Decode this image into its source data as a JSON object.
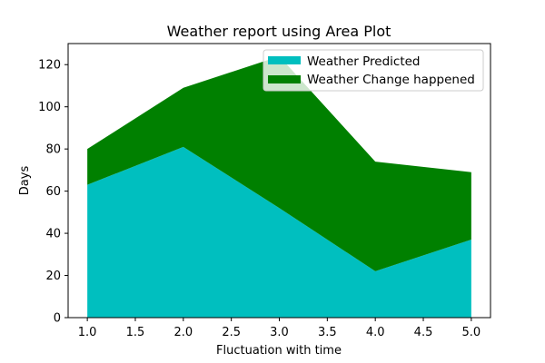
{
  "chart_data": {
    "type": "area",
    "stacked": true,
    "title": "Weather report using Area Plot",
    "xlabel": "Fluctuation with time",
    "ylabel": "Days",
    "x": [
      1,
      2,
      3,
      4,
      5
    ],
    "xlim": [
      0.8,
      5.2
    ],
    "ylim": [
      0,
      130
    ],
    "xticks": [
      1.0,
      1.5,
      2.0,
      2.5,
      3.0,
      3.5,
      4.0,
      4.5,
      5.0
    ],
    "xtick_labels": [
      "1.0",
      "1.5",
      "2.0",
      "2.5",
      "3.0",
      "3.5",
      "4.0",
      "4.5",
      "5.0"
    ],
    "yticks": [
      0,
      20,
      40,
      60,
      80,
      100,
      120
    ],
    "ytick_labels": [
      "0",
      "20",
      "40",
      "60",
      "80",
      "100",
      "120"
    ],
    "grid": false,
    "legend_position": "top-right",
    "series": [
      {
        "name": "Weather Predicted",
        "values": [
          63,
          81,
          52,
          22,
          37
        ],
        "color": "#00bfbf"
      },
      {
        "name": "Weather Change happened",
        "values": [
          17,
          28,
          72,
          52,
          32
        ],
        "color": "#008000"
      }
    ]
  }
}
